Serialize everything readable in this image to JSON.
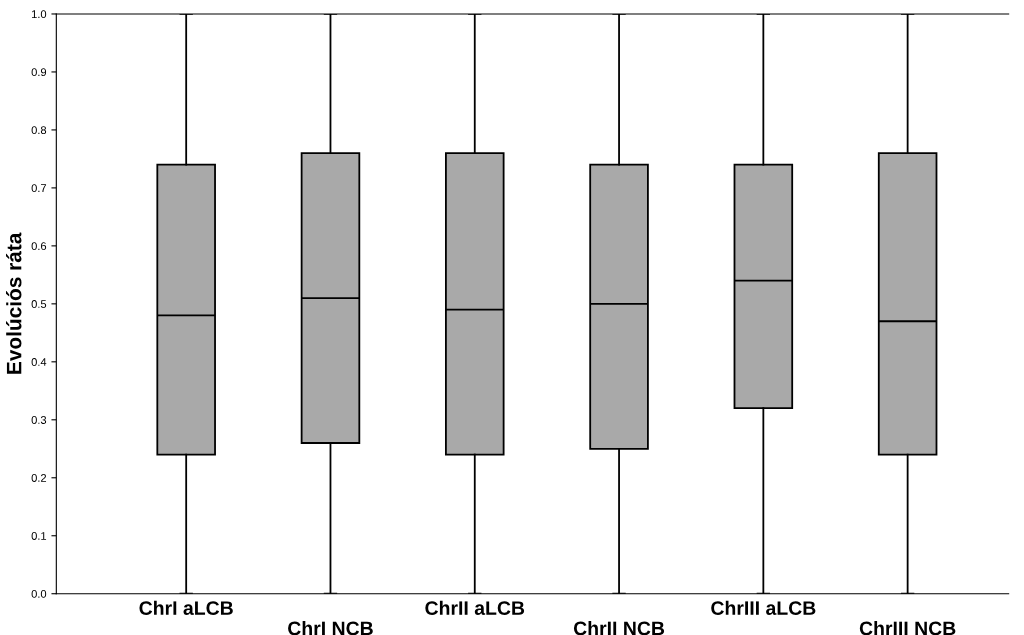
{
  "chart_data": {
    "type": "box",
    "ylabel": "Evolúciós ráta",
    "categories": [
      "ChrI aLCB",
      "ChrI NCB",
      "ChrII aLCB",
      "ChrII NCB",
      "ChrIII aLCB",
      "ChrIII NCB"
    ],
    "color": "#a9a9a9",
    "boxes": [
      {
        "low": 0,
        "q1": 0.24,
        "median": 0.48,
        "q3": 0.74,
        "high": 1
      },
      {
        "low": 0,
        "q1": 0.26,
        "median": 0.51,
        "q3": 0.76,
        "high": 1
      },
      {
        "low": 0,
        "q1": 0.24,
        "median": 0.49,
        "q3": 0.76,
        "high": 1
      },
      {
        "low": 0,
        "q1": 0.25,
        "median": 0.5,
        "q3": 0.74,
        "high": 1
      },
      {
        "low": 0,
        "q1": 0.32,
        "median": 0.54,
        "q3": 0.74,
        "high": 1
      },
      {
        "low": 0,
        "q1": 0.24,
        "median": 0.47,
        "q3": 0.76,
        "high": 1
      }
    ],
    "ylim": [
      0,
      1
    ],
    "yticks": [
      {
        "value": 0,
        "label": "0.0"
      },
      0.1,
      0.2,
      0.3,
      0.4,
      0.5,
      0.6,
      0.7,
      0.8,
      0.9,
      {
        "value": 1,
        "label": "1.0"
      }
    ],
    "grid": false
  }
}
